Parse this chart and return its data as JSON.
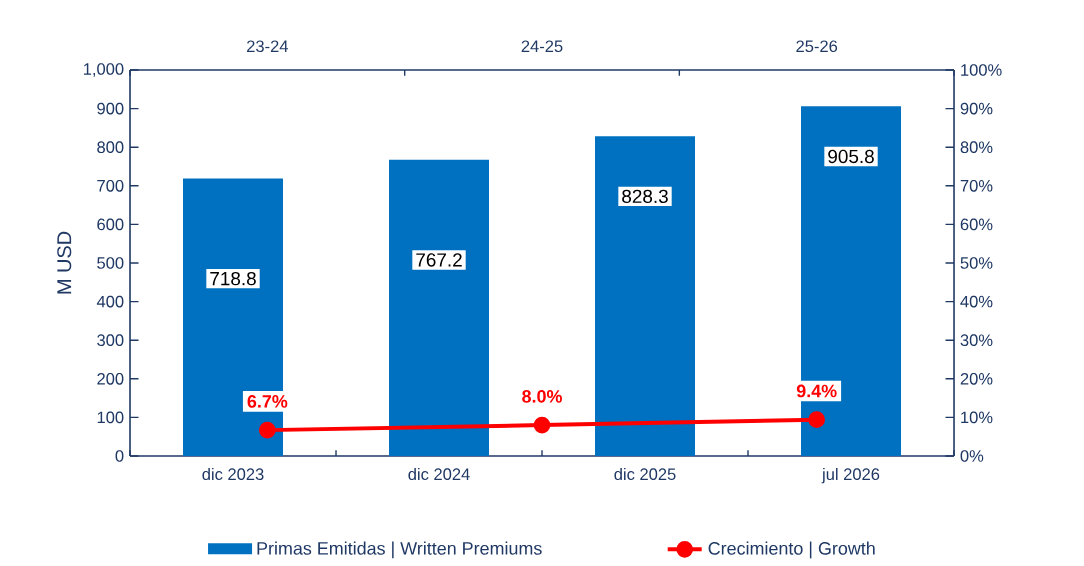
{
  "chart_data": [
    {
      "type": "bar",
      "ylabel": "M USD",
      "categories": [
        "dic 2023",
        "dic 2024",
        "dic 2025",
        "jul 2026"
      ],
      "series": [
        {
          "name": "Primas Emitidas | Written Premiums",
          "color": "#0070c0",
          "values": [
            718.8,
            767.2,
            828.3,
            905.8
          ],
          "value_labels": [
            "718.8",
            "767.2",
            "828.3",
            "905.8"
          ]
        }
      ],
      "ylim": [
        0,
        1000
      ],
      "yticks": [
        0,
        100,
        200,
        300,
        400,
        500,
        600,
        700,
        800,
        900,
        {
          "value": 1000,
          "label": "1,000"
        }
      ],
      "legend": "bottom"
    },
    {
      "type": "line",
      "categories": [
        "23-24",
        "24-25",
        "25-26"
      ],
      "series": [
        {
          "name": "Crecimiento | Growth",
          "color": "#ff0000",
          "values": [
            6.7,
            8.0,
            9.4
          ],
          "value_labels": [
            "6.7%",
            "8.0%",
            "9.4%"
          ]
        }
      ],
      "ylim": [
        0,
        100
      ],
      "yticks": [
        {
          "value": 0,
          "label": "0%"
        },
        {
          "value": 10,
          "label": "10%"
        },
        {
          "value": 20,
          "label": "20%"
        },
        {
          "value": 30,
          "label": "30%"
        },
        {
          "value": 40,
          "label": "40%"
        },
        {
          "value": 50,
          "label": "50%"
        },
        {
          "value": 60,
          "label": "60%"
        },
        {
          "value": 70,
          "label": "70%"
        },
        {
          "value": 80,
          "label": "80%"
        },
        {
          "value": 90,
          "label": "90%"
        },
        {
          "value": 100,
          "label": "100%"
        }
      ],
      "marker": "circle",
      "legend": "bottom"
    }
  ]
}
